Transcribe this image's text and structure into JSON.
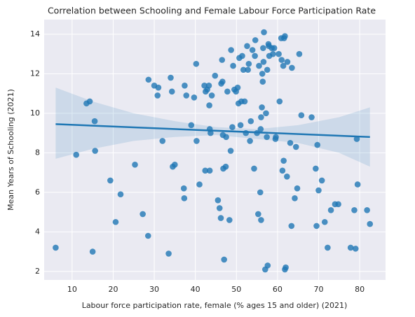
{
  "chart_data": {
    "type": "scatter",
    "title": "Correlation between Schooling and Female Labour Force Participation Rate",
    "xlabel": "Labour force participation rate, female (% ages 15 and older) (2021)",
    "ylabel": "Mean Years of Schooling (2021)",
    "color": "#1f77b4",
    "grid": true,
    "xlim": [
      3.2,
      86.3
    ],
    "xticks": [
      10,
      20,
      30,
      40,
      50,
      60,
      70,
      80
    ],
    "ylim": [
      1.57,
      14.74
    ],
    "yticks": [
      2,
      4,
      6,
      8,
      10,
      12,
      14
    ],
    "x": [
      6,
      11,
      13.5,
      14.3,
      15,
      15.5,
      15.6,
      19.3,
      20.6,
      21.8,
      25.3,
      27.2,
      28.5,
      28.6,
      30,
      30.8,
      31,
      32,
      33.5,
      34,
      34.3,
      34.5,
      35,
      37.2,
      37.3,
      37.4,
      37.8,
      39,
      39.7,
      40.2,
      40.3,
      41,
      42.2,
      42.4,
      42.5,
      42.9,
      43.3,
      43.4,
      43.5,
      43.5,
      43.7,
      44,
      44.8,
      45.5,
      45.9,
      46.2,
      46.3,
      46.5,
      46.6,
      46.7,
      46.8,
      47,
      47.4,
      47.5,
      47.8,
      48.3,
      48.6,
      48.7,
      49,
      49.2,
      49.5,
      49.9,
      50.3,
      50.5,
      50.7,
      51,
      51.2,
      51.4,
      51.7,
      52,
      52.3,
      52.6,
      52.8,
      53,
      53.3,
      53.5,
      53.9,
      54.3,
      54.5,
      54.6,
      55,
      55.3,
      55.5,
      55.8,
      55.9,
      56,
      56,
      56.2,
      56.3,
      56.4,
      56.5,
      56.6,
      56.7,
      57,
      57.2,
      57.4,
      57.5,
      57.6,
      57.8,
      57.9,
      58,
      58.6,
      58.9,
      59.2,
      59.6,
      59.5,
      60.3,
      60.5,
      60.9,
      61,
      61.2,
      61.4,
      61.5,
      61.6,
      61.8,
      61.8,
      62,
      62.3,
      62.4,
      63.1,
      63.4,
      63.5,
      64.2,
      64.5,
      64.8,
      65.3,
      65.8,
      68.3,
      69.3,
      69.5,
      69.7,
      70,
      70.8,
      71.5,
      72.2,
      73,
      74,
      74.8,
      77.8,
      78.7,
      79,
      79.3,
      79.5,
      81.8,
      82.5
    ],
    "values": [
      3.2,
      7.9,
      10.5,
      10.6,
      3.0,
      9.6,
      8.1,
      6.6,
      4.5,
      5.9,
      7.4,
      4.9,
      3.8,
      11.7,
      11.4,
      10.9,
      11.3,
      8.6,
      2.9,
      11.8,
      11.1,
      7.3,
      7.4,
      6.2,
      5.7,
      11.4,
      10.9,
      9.4,
      10.8,
      12.5,
      8.6,
      6.4,
      11.4,
      7.1,
      11.1,
      11.2,
      11.4,
      10.4,
      9.2,
      7.1,
      9.0,
      10.9,
      11.9,
      5.6,
      5.2,
      4.7,
      11.5,
      12.7,
      11.6,
      8.9,
      7.2,
      2.6,
      7.3,
      8.8,
      11.1,
      4.6,
      8.1,
      13.2,
      9.3,
      12.4,
      11.2,
      11.1,
      11.3,
      10.5,
      12.8,
      9.4,
      10.6,
      12.9,
      12.2,
      10.6,
      9.0,
      13.4,
      12.2,
      12.5,
      8.6,
      9.6,
      13.2,
      7.2,
      12.9,
      13.7,
      9.0,
      4.9,
      12.4,
      6.0,
      9.2,
      4.6,
      9.8,
      10.3,
      12.0,
      11.6,
      13.3,
      12.6,
      14.1,
      2.1,
      10.0,
      8.8,
      12.2,
      2.3,
      13.5,
      13.4,
      12.9,
      13.3,
      13.0,
      13.3,
      8.8,
      8.7,
      13.0,
      10.6,
      13.8,
      12.7,
      7.1,
      12.4,
      7.6,
      13.8,
      13.9,
      2.1,
      2.2,
      6.8,
      12.6,
      8.5,
      4.3,
      12.3,
      5.7,
      8.3,
      6.2,
      13.0,
      9.9,
      9.8,
      7.2,
      4.3,
      8.4,
      6.1,
      6.6,
      4.5,
      3.2,
      5.1,
      5.4,
      5.4,
      3.2,
      5.1,
      3.15,
      8.7,
      6.4,
      5.1,
      4.4
    ],
    "regression": {
      "x": [
        6,
        82.5
      ],
      "values": [
        9.45,
        8.8
      ]
    },
    "ci": {
      "x": [
        6,
        15,
        25,
        35,
        45,
        55,
        65,
        75,
        82.5
      ],
      "upper": [
        11.3,
        10.6,
        10.0,
        9.6,
        9.3,
        9.2,
        9.4,
        9.8,
        10.3
      ],
      "lower": [
        7.7,
        8.2,
        8.6,
        8.8,
        8.9,
        8.7,
        8.5,
        8.0,
        7.3
      ]
    }
  }
}
